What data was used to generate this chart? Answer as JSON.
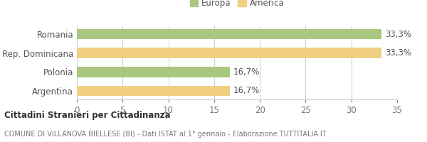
{
  "categories": [
    "Argentina",
    "Polonia",
    "Rep. Dominicana",
    "Romania"
  ],
  "values": [
    16.7,
    16.7,
    33.3,
    33.3
  ],
  "colors": [
    "#f0d080",
    "#a8c880",
    "#f0d080",
    "#a8c880"
  ],
  "labels": [
    "16,7%",
    "16,7%",
    "33,3%",
    "33,3%"
  ],
  "xlim": [
    0,
    35
  ],
  "xticks": [
    0,
    5,
    10,
    15,
    20,
    25,
    30,
    35
  ],
  "legend_europa_color": "#a8c880",
  "legend_america_color": "#f0d080",
  "legend_europa_label": "Europa",
  "legend_america_label": "America",
  "title_bold": "Cittadini Stranieri per Cittadinanza",
  "subtitle": "COMUNE DI VILLANOVA BIELLESE (BI) - Dati ISTAT al 1° gennaio - Elaborazione TUTTITALIA.IT",
  "bar_height": 0.55,
  "label_fontsize": 8.5,
  "tick_fontsize": 8.5,
  "background_color": "#ffffff",
  "grid_color": "#cccccc"
}
